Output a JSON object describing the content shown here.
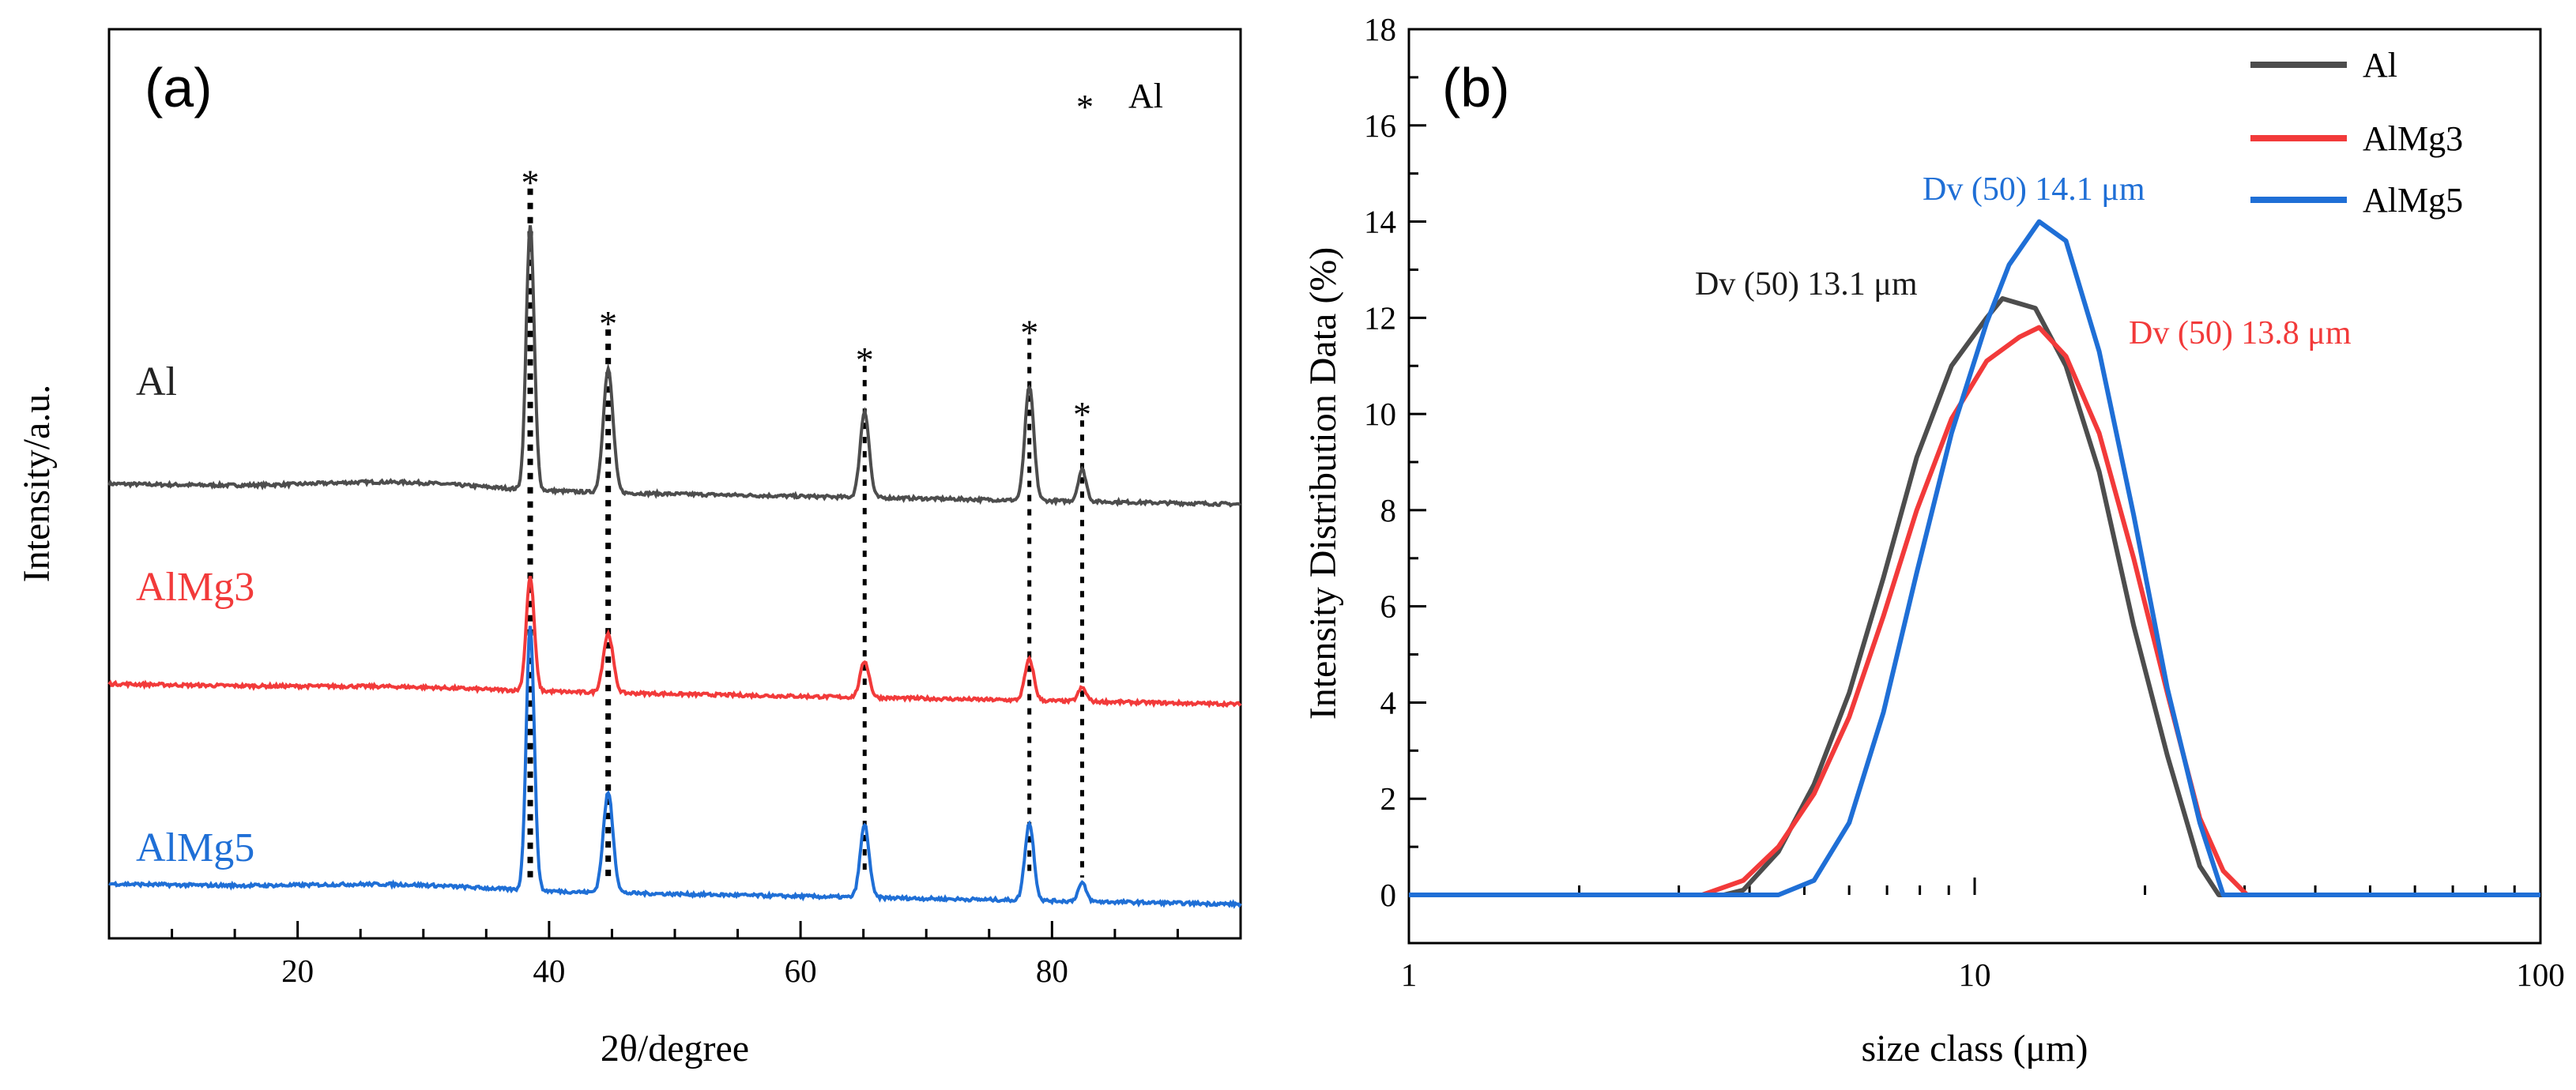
{
  "chart_data": [
    {
      "panel_label": "(a)",
      "type": "line",
      "xlabel": "2θ/degree",
      "ylabel": "Intensity/a.u.",
      "xlim": [
        5,
        95
      ],
      "xticks": [
        20,
        40,
        60,
        80
      ],
      "legend": {
        "symbol": "*",
        "label": "Al"
      },
      "peak_marker": "*",
      "peaks_2theta": [
        38.5,
        44.7,
        65.1,
        78.2,
        82.4
      ],
      "series": [
        {
          "name": "Al",
          "color": "#4d4d4d",
          "baseline": 100,
          "peak_heights": [
            58,
            27,
            19,
            25,
            7
          ],
          "hump": 1.5
        },
        {
          "name": "AlMg3",
          "color": "#f23a3a",
          "baseline": 56,
          "peak_heights": [
            25,
            13,
            8,
            9,
            3
          ],
          "hump": 0.5
        },
        {
          "name": "AlMg5",
          "color": "#1f6fd6",
          "baseline": 12,
          "peak_heights": [
            58,
            22,
            16,
            17,
            4
          ],
          "hump": 1
        }
      ]
    },
    {
      "panel_label": "(b)",
      "type": "line",
      "xscale": "log",
      "xlabel": "size class (μm)",
      "ylabel": "Intensity Distribution Data (%)",
      "xlim": [
        1,
        100
      ],
      "ylim": [
        0,
        18
      ],
      "xticks": [
        1,
        10,
        100
      ],
      "yticks": [
        0,
        2,
        4,
        6,
        8,
        10,
        12,
        14,
        16,
        18
      ],
      "legend_position": "top-right",
      "series": [
        {
          "name": "Al",
          "color": "#4d4d4d",
          "x": [
            1,
            3.6,
            3.9,
            4.5,
            5.2,
            6.0,
            6.9,
            7.9,
            9.1,
            10.5,
            11.2,
            12.8,
            14.5,
            16.6,
            19.1,
            21.9,
            25.0,
            27.0,
            100
          ],
          "y": [
            0,
            0,
            0.1,
            0.9,
            2.3,
            4.2,
            6.6,
            9.1,
            11.0,
            12.0,
            12.4,
            12.2,
            11.0,
            8.8,
            5.6,
            2.9,
            0.6,
            0,
            0
          ],
          "annotation": "Dv (50) 13.1 μm"
        },
        {
          "name": "AlMg3",
          "color": "#f23a3a",
          "x": [
            1,
            3.3,
            3.9,
            4.5,
            5.2,
            6.0,
            6.9,
            7.9,
            9.1,
            10.5,
            12.0,
            13.0,
            14.5,
            16.6,
            19.1,
            21.9,
            25.0,
            27.5,
            30.3,
            100
          ],
          "y": [
            0,
            0,
            0.3,
            1.0,
            2.1,
            3.7,
            5.8,
            8.0,
            9.9,
            11.1,
            11.6,
            11.8,
            11.2,
            9.6,
            7.0,
            4.2,
            1.6,
            0.5,
            0,
            0
          ],
          "annotation": "Dv (50) 13.8 μm"
        },
        {
          "name": "AlMg5",
          "color": "#1f6fd6",
          "x": [
            1,
            4.5,
            5.2,
            6.0,
            6.9,
            7.9,
            9.1,
            10.5,
            11.5,
            13.0,
            14.5,
            16.6,
            19.1,
            21.9,
            25.0,
            27.5,
            100
          ],
          "y": [
            0,
            0,
            0.3,
            1.5,
            3.8,
            6.7,
            9.6,
            11.9,
            13.1,
            14.0,
            13.6,
            11.3,
            7.9,
            4.3,
            1.5,
            0,
            0
          ],
          "annotation": "Dv (50) 14.1 μm"
        }
      ]
    }
  ]
}
